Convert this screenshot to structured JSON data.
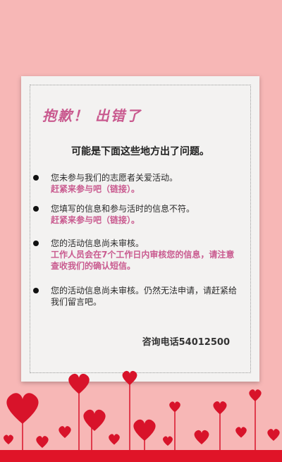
{
  "page": {
    "title": "抱歉！ 出错了",
    "subtitle": "可能是下面这些地方出了问题。",
    "items": [
      {
        "text": "您未参与我们的志愿者关爱活动。",
        "link": "赶紧来参与吧（链接）。"
      },
      {
        "text": "您填写的信息和参与活时的信息不符。",
        "link": "赶紧来参与吧（链接）。"
      },
      {
        "text": "您的活动信息尚未审核。",
        "link": "工作人员会在7个工作日内审核您的信息，请注意查收我们的确认短信。"
      },
      {
        "text": "您的活动信息尚未审核。仍然无法申请，请赶紧给我们留言吧。"
      }
    ],
    "contact": "咨询电话54012500"
  },
  "colors": {
    "background": "#f7b7b6",
    "card": "#f3f2f1",
    "accent": "#c95a8f",
    "heart": "#d8132a"
  }
}
